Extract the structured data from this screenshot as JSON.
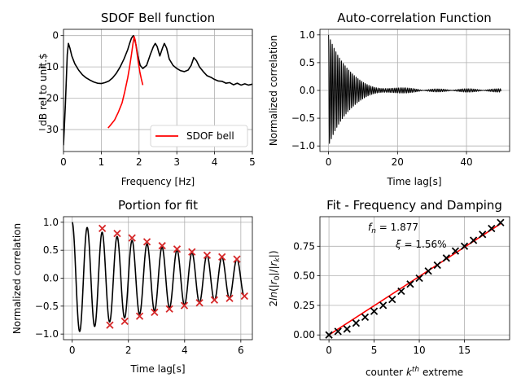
{
  "chart_data": [
    {
      "type": "line",
      "title": "SDOF Bell function",
      "xlabel": "Frequency [Hz]",
      "ylabel": "dB rel to unit.$",
      "xlim": [
        0,
        5
      ],
      "ylim": [
        -37,
        2
      ],
      "xticks": [
        0,
        1,
        2,
        3,
        4,
        5
      ],
      "yticks": [
        0,
        -10,
        -20,
        -30
      ],
      "grid": true,
      "legend": {
        "position": "lower-right",
        "entries": [
          "SDOF bell"
        ]
      },
      "series": [
        {
          "color": "#000000",
          "x": [
            0.0,
            0.05,
            0.1,
            0.13,
            0.17,
            0.22,
            0.3,
            0.4,
            0.5,
            0.6,
            0.7,
            0.8,
            0.9,
            1.0,
            1.1,
            1.2,
            1.3,
            1.4,
            1.5,
            1.6,
            1.7,
            1.75,
            1.8,
            1.85,
            1.88,
            1.92,
            1.97,
            2.03,
            2.1,
            2.2,
            2.3,
            2.38,
            2.43,
            2.48,
            2.55,
            2.62,
            2.67,
            2.73,
            2.8,
            2.9,
            3.0,
            3.1,
            3.2,
            3.3,
            3.38,
            3.45,
            3.52,
            3.6,
            3.7,
            3.8,
            3.9,
            4.0,
            4.1,
            4.2,
            4.3,
            4.4,
            4.5,
            4.6,
            4.7,
            4.8,
            4.9,
            5.0
          ],
          "y": [
            -35,
            -22,
            -6,
            -2.5,
            -4,
            -6.5,
            -9,
            -11,
            -12.5,
            -13.5,
            -14.2,
            -14.8,
            -15.2,
            -15.3,
            -15,
            -14.5,
            -13.5,
            -12,
            -10,
            -7.5,
            -4.5,
            -2.5,
            -0.8,
            0,
            -1,
            -3,
            -6.5,
            -9.5,
            -10.5,
            -9.5,
            -6,
            -3.5,
            -2.5,
            -3.5,
            -6.5,
            -4,
            -2.5,
            -4,
            -7.5,
            -9.5,
            -10.5,
            -11.2,
            -11.5,
            -11,
            -9.5,
            -7,
            -8,
            -10,
            -11.5,
            -12.8,
            -13.3,
            -14,
            -14.5,
            -14.6,
            -15.2,
            -15,
            -15.7,
            -15.2,
            -15.8,
            -15.4,
            -15.8,
            -15.5
          ]
        },
        {
          "name": "SDOF bell",
          "color": "#ff0000",
          "x": [
            1.18,
            1.25,
            1.35,
            1.45,
            1.55,
            1.62,
            1.7,
            1.75,
            1.8,
            1.84,
            1.87,
            1.9,
            1.94,
            1.98,
            2.02,
            2.06,
            2.1
          ],
          "y": [
            -29.5,
            -28.5,
            -27,
            -24.5,
            -21.5,
            -18,
            -13.5,
            -10,
            -6,
            -2.5,
            -0.3,
            -1.5,
            -5,
            -8.5,
            -11.5,
            -13.8,
            -15.8
          ]
        }
      ]
    },
    {
      "type": "line",
      "title": "Auto-correlation Function",
      "xlabel": "Time lag[s]",
      "ylabel": "Normalized correlation",
      "xlim": [
        -2.5,
        52.5
      ],
      "ylim": [
        -1.1,
        1.1
      ],
      "xticks": [
        0,
        20,
        40
      ],
      "yticks": [
        -1.0,
        -0.5,
        0.0,
        0.5,
        1.0
      ],
      "grid": true,
      "series": [
        {
          "color": "#000000",
          "signal": "decaying-oscillation",
          "t_range": [
            0,
            50
          ],
          "amplitude": 1.0,
          "frequency_hz": 1.877,
          "damping_ratio": 0.0156,
          "residual_amplitude": 0.03
        }
      ]
    },
    {
      "type": "line",
      "title": "Portion for fit",
      "xlabel": "Time lag[s]",
      "ylabel": "Normalized correlation",
      "xlim": [
        -0.31,
        6.41
      ],
      "ylim": [
        -1.1,
        1.1
      ],
      "xticks": [
        0,
        2,
        4,
        6
      ],
      "yticks": [
        -1.0,
        -0.5,
        0.0,
        0.5,
        1.0
      ],
      "grid": true,
      "series": [
        {
          "color": "#000000",
          "signal": "decaying-oscillation",
          "t_range": [
            0,
            6.1
          ],
          "amplitude": 1.0,
          "frequency_hz": 1.877,
          "damping_ratio": 0.0156
        }
      ],
      "markers": {
        "symbol": "x",
        "color": "#d62728",
        "x": [
          1.07,
          1.34,
          1.6,
          1.87,
          2.13,
          2.4,
          2.66,
          2.93,
          3.2,
          3.46,
          3.73,
          3.99,
          4.26,
          4.53,
          4.8,
          5.06,
          5.33,
          5.6,
          5.86,
          6.13
        ],
        "y": [
          0.89,
          -0.84,
          0.8,
          -0.77,
          0.72,
          -0.68,
          0.65,
          -0.61,
          0.58,
          -0.55,
          0.52,
          -0.49,
          0.47,
          -0.44,
          0.41,
          -0.39,
          0.38,
          -0.36,
          0.34,
          -0.32
        ]
      }
    },
    {
      "type": "scatter",
      "title": "Fit - Frequency and Damping",
      "xlabel": "counter k^th extreme",
      "ylabel": "2ln(|r0|/|rk|)",
      "xlim": [
        -1,
        20
      ],
      "ylim": [
        -0.04,
        1.0
      ],
      "xticks": [
        0,
        5,
        10,
        15
      ],
      "yticks": [
        0.0,
        0.25,
        0.5,
        0.75
      ],
      "grid": true,
      "annotations": [
        "fn = 1.877",
        "ξ = 1.56%"
      ],
      "points": {
        "symbol": "x",
        "color": "#000000",
        "x": [
          0,
          1,
          2,
          3,
          4,
          5,
          6,
          7,
          8,
          9,
          10,
          11,
          12,
          13,
          14,
          15,
          16,
          17,
          18,
          19
        ],
        "y": [
          0.0,
          0.03,
          0.05,
          0.1,
          0.15,
          0.2,
          0.25,
          0.3,
          0.37,
          0.43,
          0.48,
          0.54,
          0.59,
          0.65,
          0.71,
          0.75,
          0.8,
          0.85,
          0.9,
          0.95
        ]
      },
      "fit_line": {
        "color": "#ff0000",
        "x": [
          0,
          19
        ],
        "y": [
          0.0,
          0.94
        ]
      }
    }
  ]
}
